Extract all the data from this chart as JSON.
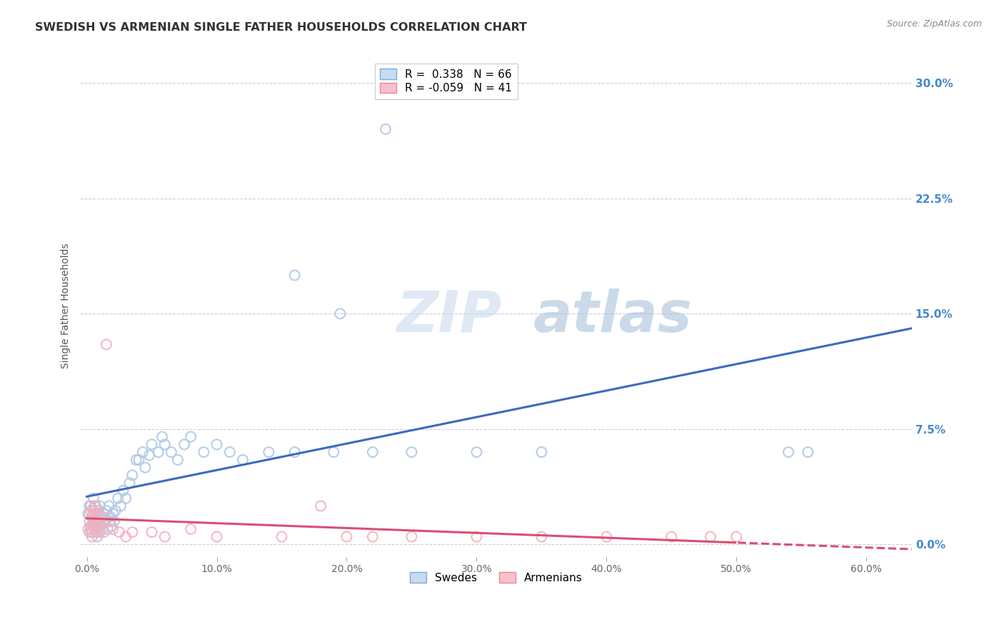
{
  "title": "SWEDISH VS ARMENIAN SINGLE FATHER HOUSEHOLDS CORRELATION CHART",
  "source": "Source: ZipAtlas.com",
  "ylabel": "Single Father Households",
  "xlabel_ticks": [
    "0.0%",
    "10.0%",
    "20.0%",
    "30.0%",
    "40.0%",
    "50.0%",
    "60.0%"
  ],
  "xlabel_vals": [
    0.0,
    0.1,
    0.2,
    0.3,
    0.4,
    0.5,
    0.6
  ],
  "ylabel_ticks": [
    "0.0%",
    "7.5%",
    "15.0%",
    "22.5%",
    "30.0%"
  ],
  "ylabel_vals": [
    0.0,
    0.075,
    0.15,
    0.225,
    0.3
  ],
  "xlim": [
    -0.005,
    0.635
  ],
  "ylim": [
    -0.008,
    0.318
  ],
  "blue_R": "0.338",
  "blue_N": "66",
  "pink_R": "-0.059",
  "pink_N": "41",
  "legend_label_blue": "Swedes",
  "legend_label_pink": "Armenians",
  "blue_scatter_color": "#adc8e8",
  "pink_scatter_color": "#f4b0be",
  "blue_line_color": "#3a6bbf",
  "pink_line_color": "#d94e72",
  "background_color": "#ffffff",
  "grid_color": "#ccccdd",
  "watermark_zip": "ZIP",
  "watermark_atlas": "atlas",
  "swedes_x": [
    0.001,
    0.002,
    0.002,
    0.003,
    0.003,
    0.004,
    0.004,
    0.005,
    0.005,
    0.006,
    0.006,
    0.007,
    0.007,
    0.008,
    0.008,
    0.009,
    0.009,
    0.01,
    0.01,
    0.011,
    0.012,
    0.013,
    0.014,
    0.015,
    0.016,
    0.017,
    0.018,
    0.019,
    0.02,
    0.021,
    0.022,
    0.024,
    0.026,
    0.028,
    0.03,
    0.033,
    0.035,
    0.038,
    0.04,
    0.043,
    0.045,
    0.048,
    0.05,
    0.055,
    0.058,
    0.06,
    0.065,
    0.07,
    0.075,
    0.08,
    0.09,
    0.1,
    0.11,
    0.12,
    0.14,
    0.16,
    0.19,
    0.22,
    0.25,
    0.3,
    0.35,
    0.16,
    0.54,
    0.555,
    0.195,
    0.23
  ],
  "swedes_y": [
    0.02,
    0.015,
    0.025,
    0.01,
    0.022,
    0.008,
    0.018,
    0.012,
    0.03,
    0.015,
    0.025,
    0.01,
    0.02,
    0.005,
    0.018,
    0.015,
    0.022,
    0.008,
    0.025,
    0.012,
    0.018,
    0.02,
    0.015,
    0.022,
    0.01,
    0.025,
    0.018,
    0.012,
    0.02,
    0.015,
    0.022,
    0.03,
    0.025,
    0.035,
    0.03,
    0.04,
    0.045,
    0.055,
    0.055,
    0.06,
    0.05,
    0.058,
    0.065,
    0.06,
    0.07,
    0.065,
    0.06,
    0.055,
    0.065,
    0.07,
    0.06,
    0.065,
    0.06,
    0.055,
    0.06,
    0.06,
    0.06,
    0.06,
    0.06,
    0.06,
    0.06,
    0.175,
    0.06,
    0.06,
    0.15,
    0.27
  ],
  "armenians_x": [
    0.001,
    0.002,
    0.002,
    0.003,
    0.003,
    0.004,
    0.004,
    0.005,
    0.005,
    0.006,
    0.006,
    0.007,
    0.007,
    0.008,
    0.008,
    0.009,
    0.01,
    0.011,
    0.012,
    0.013,
    0.015,
    0.018,
    0.02,
    0.025,
    0.03,
    0.035,
    0.05,
    0.06,
    0.08,
    0.1,
    0.15,
    0.2,
    0.25,
    0.3,
    0.35,
    0.4,
    0.45,
    0.48,
    0.5,
    0.18,
    0.22
  ],
  "armenians_y": [
    0.01,
    0.008,
    0.02,
    0.012,
    0.025,
    0.005,
    0.018,
    0.015,
    0.022,
    0.008,
    0.018,
    0.012,
    0.025,
    0.008,
    0.015,
    0.02,
    0.012,
    0.018,
    0.01,
    0.008,
    0.13,
    0.015,
    0.01,
    0.008,
    0.005,
    0.008,
    0.008,
    0.005,
    0.01,
    0.005,
    0.005,
    0.005,
    0.005,
    0.005,
    0.005,
    0.005,
    0.005,
    0.005,
    0.005,
    0.025,
    0.005
  ]
}
